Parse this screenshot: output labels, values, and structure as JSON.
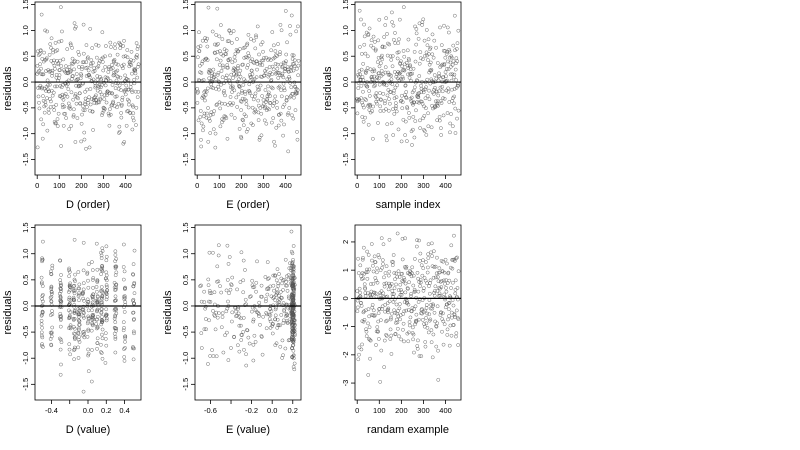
{
  "chart_data": [
    {
      "type": "scatter",
      "xlabel": "D (order)",
      "ylabel": "residuals",
      "xlim": [
        -10,
        470
      ],
      "ylim": [
        -1.8,
        1.55
      ],
      "xticks": [
        0,
        100,
        200,
        300,
        400
      ],
      "xtick_labels": [
        "0",
        "100",
        "200",
        "300",
        "400"
      ],
      "yticks": [
        1.5,
        1.0,
        0.5,
        0.0,
        -0.5,
        -1.0,
        -1.5
      ],
      "ytick_labels": [
        "1.5",
        "1.0",
        "0.5",
        "0.0",
        "-0.5",
        "-1.0",
        "-1.5"
      ],
      "hline": 0,
      "x_gen": "order",
      "n": 460,
      "y_sd": 0.5,
      "y_max": 1.45,
      "y_min": -1.7
    },
    {
      "type": "scatter",
      "xlabel": "E (order)",
      "ylabel": "residuals",
      "xlim": [
        -10,
        470
      ],
      "ylim": [
        -1.8,
        1.55
      ],
      "xticks": [
        0,
        100,
        200,
        300,
        400
      ],
      "xtick_labels": [
        "0",
        "100",
        "200",
        "300",
        "400"
      ],
      "yticks": [
        1.5,
        1.0,
        0.5,
        0.0,
        -0.5,
        -1.0,
        -1.5
      ],
      "ytick_labels": [
        "1.5",
        "1.0",
        "0.5",
        "0.0",
        "-0.5",
        "-1.0",
        "-1.5"
      ],
      "hline": 0,
      "x_gen": "order",
      "n": 460,
      "y_sd": 0.5,
      "y_max": 1.45,
      "y_min": -1.7
    },
    {
      "type": "scatter",
      "xlabel": "sample index",
      "ylabel": "residuals",
      "xlim": [
        -10,
        470
      ],
      "ylim": [
        -1.8,
        1.55
      ],
      "xticks": [
        0,
        100,
        200,
        300,
        400
      ],
      "xtick_labels": [
        "0",
        "100",
        "200",
        "300",
        "400"
      ],
      "yticks": [
        1.5,
        1.0,
        0.5,
        0.0,
        -0.5,
        -1.0,
        -1.5
      ],
      "ytick_labels": [
        "1.5",
        "1.0",
        "0.5",
        "0.0",
        "-0.5",
        "-1.0",
        "-1.5"
      ],
      "hline": 0,
      "x_gen": "order",
      "n": 460,
      "y_sd": 0.5,
      "y_max": 1.45,
      "y_min": -1.7
    },
    {
      "type": "scatter",
      "xlabel": "D (value)",
      "ylabel": "residuals",
      "xlim": [
        -0.58,
        0.58
      ],
      "ylim": [
        -1.8,
        1.55
      ],
      "xticks": [
        -0.4,
        -0.2,
        0.0,
        0.2,
        0.4
      ],
      "xtick_labels": [
        "-0.4",
        "",
        "0.0",
        "0.2",
        "0.4"
      ],
      "yticks": [
        1.5,
        1.0,
        0.5,
        0.0,
        -0.5,
        -1.0,
        -1.5
      ],
      "ytick_labels": [
        "1.5",
        "1.0",
        "0.5",
        "0.0",
        "-0.5",
        "-1.0",
        "-1.5"
      ],
      "hline": 0,
      "x_gen": "clusters",
      "x_clusters": [
        -0.5,
        -0.4,
        -0.3,
        -0.2,
        -0.15,
        -0.1,
        -0.05,
        0.0,
        0.05,
        0.1,
        0.15,
        0.2,
        0.3,
        0.4,
        0.5
      ],
      "n": 460,
      "y_sd": 0.5,
      "y_max": 1.45,
      "y_min": -1.7
    },
    {
      "type": "scatter",
      "xlabel": "E (value)",
      "ylabel": "residuals",
      "xlim": [
        -0.75,
        0.28
      ],
      "ylim": [
        -1.8,
        1.55
      ],
      "xticks": [
        -0.6,
        -0.4,
        -0.2,
        0.0,
        0.2
      ],
      "xtick_labels": [
        "-0.6",
        "",
        "-0.2",
        "0.0",
        "0.2"
      ],
      "yticks": [
        1.5,
        1.0,
        0.5,
        0.0,
        -0.5,
        -1.0,
        -1.5
      ],
      "ytick_labels": [
        "1.5",
        "1.0",
        "0.5",
        "0.0",
        "-0.5",
        "-1.0",
        "-1.5"
      ],
      "hline": 0,
      "x_gen": "skew",
      "n": 460,
      "y_sd": 0.5,
      "y_max": 1.45,
      "y_min": -1.7
    },
    {
      "type": "scatter",
      "xlabel": "randam example",
      "ylabel": "residuals",
      "xlim": [
        -10,
        470
      ],
      "ylim": [
        -3.6,
        2.6
      ],
      "xticks": [
        0,
        100,
        200,
        300,
        400
      ],
      "xtick_labels": [
        "0",
        "100",
        "200",
        "300",
        "400"
      ],
      "yticks": [
        2,
        1,
        0,
        -1,
        -2,
        -3
      ],
      "ytick_labels": [
        "2",
        "1",
        "0",
        "-1",
        "-2",
        "-3"
      ],
      "hline": 0,
      "x_gen": "order",
      "n": 460,
      "y_sd": 1.0,
      "y_max": 2.3,
      "y_min": -3.4
    }
  ]
}
